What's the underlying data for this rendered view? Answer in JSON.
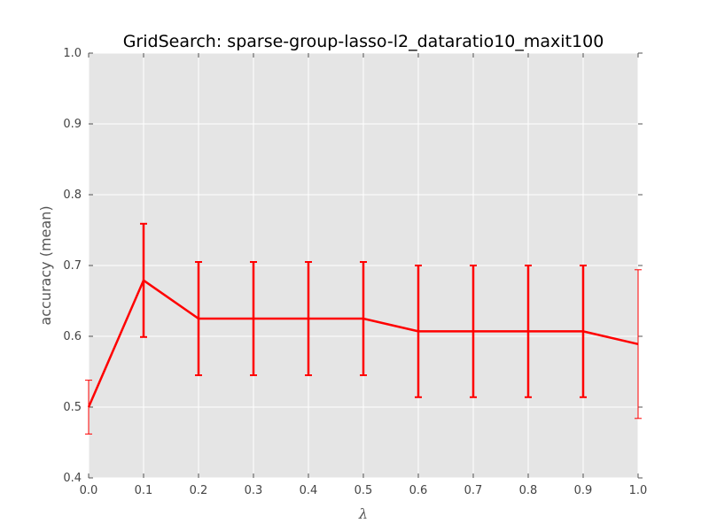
{
  "chart_data": {
    "type": "line",
    "title": "GridSearch: sparse-group-lasso-l2_dataratio10_maxit100",
    "xlabel": "λ",
    "ylabel": "accuracy (mean)",
    "xlim": [
      0.0,
      1.0
    ],
    "ylim": [
      0.4,
      1.0
    ],
    "xticks": [
      "0.0",
      "0.1",
      "0.2",
      "0.3",
      "0.4",
      "0.5",
      "0.6",
      "0.7",
      "0.8",
      "0.9",
      "1.0"
    ],
    "yticks": [
      "0.4",
      "0.5",
      "0.6",
      "0.7",
      "0.8",
      "0.9",
      "1.0"
    ],
    "grid": true,
    "line_color": "#ff0000",
    "background_color": "#e5e5e5",
    "series": [
      {
        "x": [
          0.0,
          0.1,
          0.2,
          0.3,
          0.4,
          0.5,
          0.6,
          0.7,
          0.8,
          0.9,
          1.0
        ],
        "values": [
          0.5,
          0.679,
          0.625,
          0.625,
          0.625,
          0.625,
          0.607,
          0.607,
          0.607,
          0.607,
          0.589
        ],
        "error": [
          0.038,
          0.08,
          0.08,
          0.08,
          0.08,
          0.08,
          0.093,
          0.093,
          0.093,
          0.093,
          0.105
        ]
      }
    ]
  }
}
